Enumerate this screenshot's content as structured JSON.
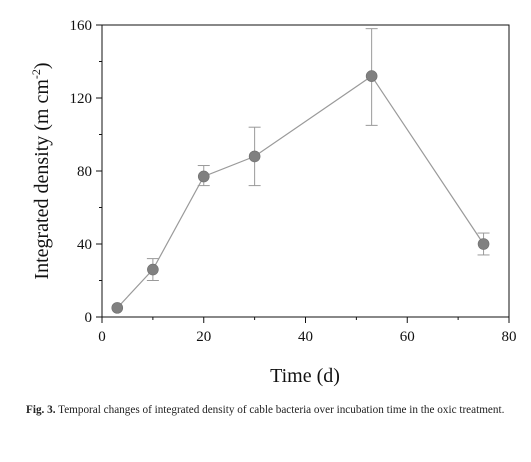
{
  "chart_data": {
    "type": "scatter",
    "xlabel": "Time (d)",
    "ylabel_main": "Integrated density (m cm",
    "ylabel_sup": "-2",
    "ylabel_end": ")",
    "xlim": [
      0,
      80
    ],
    "ylim": [
      0,
      160
    ],
    "x_ticks": [
      "0",
      "20",
      "40",
      "60",
      "80"
    ],
    "y_ticks": [
      "0",
      "40",
      "80",
      "120",
      "160"
    ],
    "grid": false,
    "legend": "none",
    "marker_color": "#808080",
    "line_color": "#9a9a9a",
    "points": [
      {
        "x": 3,
        "y": 5,
        "err_low": 5,
        "err_high": 5
      },
      {
        "x": 10,
        "y": 26,
        "err_low": 20,
        "err_high": 32
      },
      {
        "x": 20,
        "y": 77,
        "err_low": 72,
        "err_high": 83
      },
      {
        "x": 30,
        "y": 88,
        "err_low": 72,
        "err_high": 104
      },
      {
        "x": 53,
        "y": 132,
        "err_low": 105,
        "err_high": 158
      },
      {
        "x": 75,
        "y": 40,
        "err_low": 34,
        "err_high": 46
      }
    ]
  },
  "caption": {
    "label": "Fig. 3.",
    "text": "Temporal changes of integrated density of cable bacteria over incubation time in the oxic treatment."
  }
}
